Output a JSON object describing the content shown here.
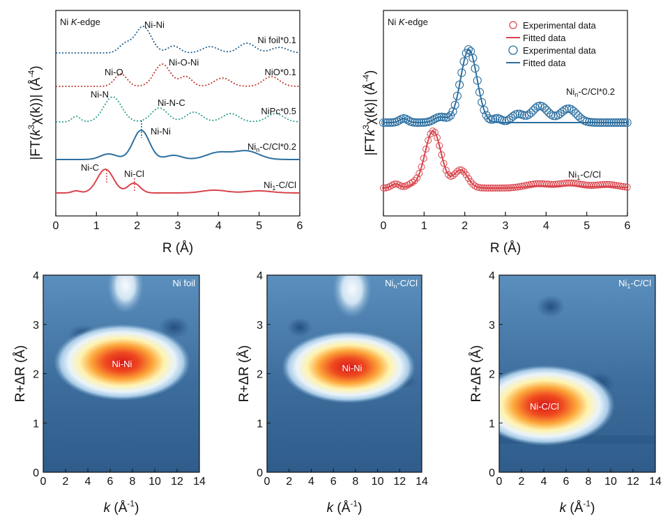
{
  "chart_data": [
    {
      "type": "line",
      "panel": "a",
      "title": "Ni K-edge",
      "xlabel": "R (Å)",
      "ylabel": "|FT(k³χ(k))| (Å⁻⁴)",
      "xlim": [
        0,
        6
      ],
      "xticks": [
        "0",
        "1",
        "2",
        "3",
        "4",
        "5",
        "6"
      ],
      "series": [
        {
          "name": "Ni foil*0.1",
          "style": "dotted",
          "color": "#1f5f8f",
          "peaks": [
            {
              "r": 2.15,
              "label": "Ni-Ni"
            }
          ]
        },
        {
          "name": "NiO*0.1",
          "style": "dotted",
          "color": "#c0392b",
          "peaks": [
            {
              "r": 1.6,
              "label": "Ni-O"
            },
            {
              "r": 2.6,
              "label": "Ni-O-Ni"
            }
          ]
        },
        {
          "name": "NiPc*0.5",
          "style": "dotted",
          "color": "#2a9d8f",
          "peaks": [
            {
              "r": 1.4,
              "label": "Ni-N"
            },
            {
              "r": 2.55,
              "label": "Ni-N-C"
            }
          ]
        },
        {
          "name": "Nin-C/Cl*0.2",
          "style": "solid",
          "color": "#2c6fa0",
          "peaks": [
            {
              "r": 2.1,
              "label": "Ni-Ni"
            }
          ]
        },
        {
          "name": "Ni1-C/Cl",
          "style": "solid",
          "color": "#d9434b",
          "peaks": [
            {
              "r": 1.22,
              "label": "Ni-C"
            },
            {
              "r": 1.92,
              "label": "Ni-Cl"
            }
          ]
        }
      ],
      "labels": {
        "title_prefix": "Ni ",
        "title_ital": "K",
        "title_suffix": "-edge",
        "s1": "Ni foil*0.1",
        "s2": "NiO*0.1",
        "s3": "NiPc*0.5",
        "s4_a": "Ni",
        "s4_sub": "n",
        "s4_b": "-C/Cl*0.2",
        "s5_a": "Ni",
        "s5_sub": "1",
        "s5_b": "-C/Cl",
        "p_ninif": "Ni-Ni",
        "p_nio": "Ni-O",
        "p_nioni": "Ni-O-Ni",
        "p_nin": "Ni-N",
        "p_ninc": "Ni-N-C",
        "p_nini2": "Ni-Ni",
        "p_nic": "Ni-C",
        "p_nicl": "Ni-Cl",
        "xlabel": "R (Å)",
        "yl_1": "|FT(",
        "yl_k": "k",
        "yl_3": "3",
        "yl_2": "χ(k))| (Å",
        "yl_m4": "-4",
        "yl_end": ")"
      }
    },
    {
      "type": "scatter+line",
      "panel": "b",
      "title": "Ni K-edge",
      "xlabel": "R (Å)",
      "ylabel": "|FTk³χ(k)| (Å⁻⁴)",
      "xlim": [
        0,
        6
      ],
      "xticks": [
        "0",
        "1",
        "2",
        "3",
        "4",
        "5",
        "6"
      ],
      "legend": [
        {
          "label": "Experimental data",
          "marker": "circle",
          "color": "#d9434b"
        },
        {
          "label": "Fitted data",
          "marker": "line",
          "color": "#d9434b"
        },
        {
          "label": "Experimental data",
          "marker": "circle",
          "color": "#2c6fa0"
        },
        {
          "label": "Fitted data",
          "marker": "line",
          "color": "#2c6fa0"
        }
      ],
      "series": [
        {
          "name": "Nin-C/Cl*0.2",
          "color": "#2c6fa0",
          "main_peak_r": 2.1
        },
        {
          "name": "Ni1-C/Cl",
          "color": "#d9434b",
          "main_peak_r": 1.22
        }
      ],
      "labels": {
        "title_prefix": "Ni ",
        "title_ital": "K",
        "title_suffix": "-edge",
        "leg1": "Experimental data",
        "leg2": "Fitted data",
        "leg3": "Experimental data",
        "leg4": "Fitted data",
        "s1_a": "Ni",
        "s1_sub": "n",
        "s1_b": "-C/Cl*0.2",
        "s2_a": "Ni",
        "s2_sub": "1",
        "s2_b": "-C/Cl",
        "xlabel": "R (Å)",
        "yl_1": "|FT",
        "yl_k": "k",
        "yl_3": "3",
        "yl_2": "χ(k)| (Å",
        "yl_m4": "-4",
        "yl_end": ")"
      }
    },
    {
      "type": "heatmap",
      "panel": "c",
      "title": "Ni foil",
      "xlabel": "k (Å⁻¹)",
      "ylabel": "R+ΔR (Å)",
      "xlim": [
        0,
        14
      ],
      "ylim": [
        0,
        4
      ],
      "xticks": [
        "0",
        "2",
        "4",
        "6",
        "8",
        "10",
        "12",
        "14"
      ],
      "yticks": [
        "0",
        "1",
        "2",
        "3",
        "4"
      ],
      "hotspot": {
        "k": 7.0,
        "r": 2.15,
        "label": "Ni-Ni"
      },
      "labels": {
        "t_a": "Ni foil",
        "t_sub": "",
        "t_b": ""
      }
    },
    {
      "type": "heatmap",
      "panel": "d",
      "title": "Nin-C/Cl",
      "xlabel": "k (Å⁻¹)",
      "ylabel": "R+ΔR (Å)",
      "xlim": [
        0,
        14
      ],
      "ylim": [
        0,
        4
      ],
      "xticks": [
        "0",
        "2",
        "4",
        "6",
        "8",
        "10",
        "12",
        "14"
      ],
      "yticks": [
        "0",
        "1",
        "2",
        "3",
        "4"
      ],
      "hotspot": {
        "k": 7.2,
        "r": 2.1,
        "label": "Ni-Ni"
      },
      "labels": {
        "t_a": "Ni",
        "t_sub": "n",
        "t_b": "-C/Cl"
      }
    },
    {
      "type": "heatmap",
      "panel": "e",
      "title": "Ni1-C/Cl",
      "xlabel": "k (Å⁻¹)",
      "ylabel": "R+ΔR (Å)",
      "xlim": [
        0,
        14
      ],
      "ylim": [
        0,
        4
      ],
      "xticks": [
        "0",
        "2",
        "4",
        "6",
        "8",
        "10",
        "12",
        "14"
      ],
      "yticks": [
        "0",
        "1",
        "2",
        "3",
        "4"
      ],
      "hotspot": {
        "k": 3.6,
        "r": 1.3,
        "label": "Ni-C/Cl"
      },
      "labels": {
        "t_a": "Ni",
        "t_sub": "1",
        "t_b": "-C/Cl"
      }
    }
  ],
  "heat_axis": {
    "ylabel": "R+ΔR (Å)",
    "xlabel_k": "k",
    "xlabel_rest": " (Å",
    "xlabel_sup": "-1",
    "xlabel_end": ")"
  },
  "colors": {
    "blue": "#2c6fa0",
    "red": "#d9434b",
    "teal": "#2a9d8f",
    "darkred": "#c0392b",
    "navy": "#1f5f8f"
  }
}
